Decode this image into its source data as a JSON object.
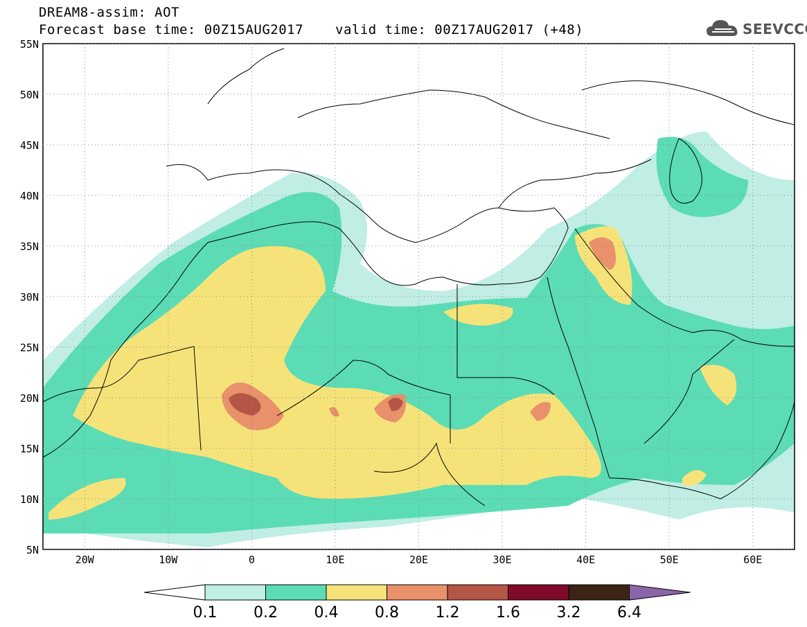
{
  "header": {
    "title_line1": "DREAM8-assim: AOT",
    "title_line2": "Forecast base time: 00Z15AUG2017",
    "valid_time": "valid time: 00Z17AUG2017 (+48)",
    "logo_text": "SEEVCCC"
  },
  "map": {
    "lat_labels": [
      "55N",
      "50N",
      "45N",
      "40N",
      "35N",
      "30N",
      "25N",
      "20N",
      "15N",
      "10N",
      "5N"
    ],
    "lon_labels": [
      "20W",
      "10W",
      "0",
      "10E",
      "20E",
      "30E",
      "40E",
      "50E",
      "60E"
    ],
    "lat_range": [
      5,
      55
    ],
    "lon_range": [
      -25,
      65
    ]
  },
  "colorbar": {
    "labels": [
      "0.1",
      "0.2",
      "0.4",
      "0.8",
      "1.2",
      "1.6",
      "3.2",
      "6.4"
    ],
    "colors": [
      "#ffffff",
      "#c0ede4",
      "#5bdcb4",
      "#f5e37a",
      "#e8916a",
      "#b55545",
      "#7f0a2a",
      "#3c2414",
      "#8a65a8"
    ]
  }
}
